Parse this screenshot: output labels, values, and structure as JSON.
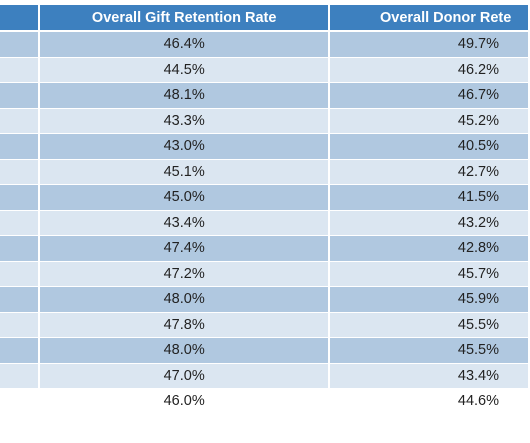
{
  "table": {
    "headers": [
      "",
      "Overall Gift Retention Rate",
      "Overall Donor Rete"
    ],
    "rows": [
      {
        "c1": "46.4%",
        "c2": "49.7%"
      },
      {
        "c1": "44.5%",
        "c2": "46.2%"
      },
      {
        "c1": "48.1%",
        "c2": "46.7%"
      },
      {
        "c1": "43.3%",
        "c2": "45.2%"
      },
      {
        "c1": "43.0%",
        "c2": "40.5%"
      },
      {
        "c1": "45.1%",
        "c2": "42.7%"
      },
      {
        "c1": "45.0%",
        "c2": "41.5%"
      },
      {
        "c1": "43.4%",
        "c2": "43.2%"
      },
      {
        "c1": "47.4%",
        "c2": "42.8%"
      },
      {
        "c1": "47.2%",
        "c2": "45.7%"
      },
      {
        "c1": "48.0%",
        "c2": "45.9%"
      },
      {
        "c1": "47.8%",
        "c2": "45.5%"
      },
      {
        "c1": "48.0%",
        "c2": "45.5%"
      },
      {
        "c1": "47.0%",
        "c2": "43.4%"
      },
      {
        "c1": "46.0%",
        "c2": "44.6%"
      }
    ],
    "row_colors": {
      "dark": "#b0c8e0",
      "light": "#dbe6f1",
      "header": "#3d80bf"
    }
  }
}
